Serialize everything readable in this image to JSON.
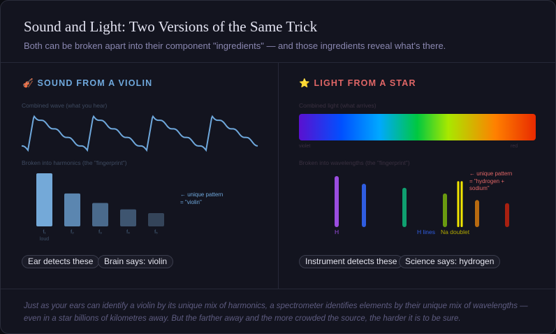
{
  "header": {
    "title": "Sound and Light: Two Versions of the Same Trick",
    "subtitle": "Both can be broken apart into their component \"ingredients\" — and those ingredients reveal what's there."
  },
  "left": {
    "icon": "violin-icon",
    "heading": "SOUND FROM A VIOLIN",
    "accent": "#6fa8dc",
    "wave_label": "Combined wave (what you hear)",
    "harmonics_label": "Broken into harmonics (the \"fingerprint\")",
    "harmonics": [
      {
        "label": "f₁",
        "sub": "loud",
        "amplitude": 1.0
      },
      {
        "label": "f₂",
        "amplitude": 0.62
      },
      {
        "label": "f₃",
        "amplitude": 0.44
      },
      {
        "label": "f₄",
        "amplitude": 0.32
      },
      {
        "label": "f₅",
        "amplitude": 0.25
      }
    ],
    "note_line1": "← unique pattern",
    "note_line2": "= \"violin\"",
    "pill1": "Ear detects these",
    "pill2": "Brain says: violin"
  },
  "right": {
    "icon": "star-icon",
    "heading": "LIGHT FROM A STAR",
    "accent": "#e06666",
    "spectrum_label": "Combined light (what arrives)",
    "violet": "violet",
    "red": "red",
    "wavelengths_label": "Broken into wavelengths (the \"fingerprint\")",
    "lines": [
      {
        "color": "#9b4de0",
        "intensity": 1.0
      },
      {
        "color": "#2f5de0",
        "intensity": 0.85
      },
      {
        "color": "#0fa070",
        "intensity": 0.77
      },
      {
        "color": "#6a9a10",
        "intensity": 0.66
      },
      {
        "color": "#f2e600",
        "intensity": 0.9
      },
      {
        "color": "#f2e600",
        "intensity": 0.9
      },
      {
        "color": "#b86a10",
        "intensity": 0.53
      },
      {
        "color": "#a82010",
        "intensity": 0.47
      }
    ],
    "tag_h": "H",
    "tag_hlines": "H lines",
    "tag_na": "Na doublet",
    "note_line1": "← unique pattern",
    "note_line2": "= \"hydrogen +",
    "note_line3": "sodium\"",
    "pill1": "Instrument detects these",
    "pill2": "Science says: hydrogen"
  },
  "footer": "Just as your ears can identify a violin by its unique mix of harmonics, a spectrometer identifies elements by their unique mix of wavelengths — even in a star billions of kilometres away. But the farther away and the more crowded the source, the harder it is to be sure."
}
